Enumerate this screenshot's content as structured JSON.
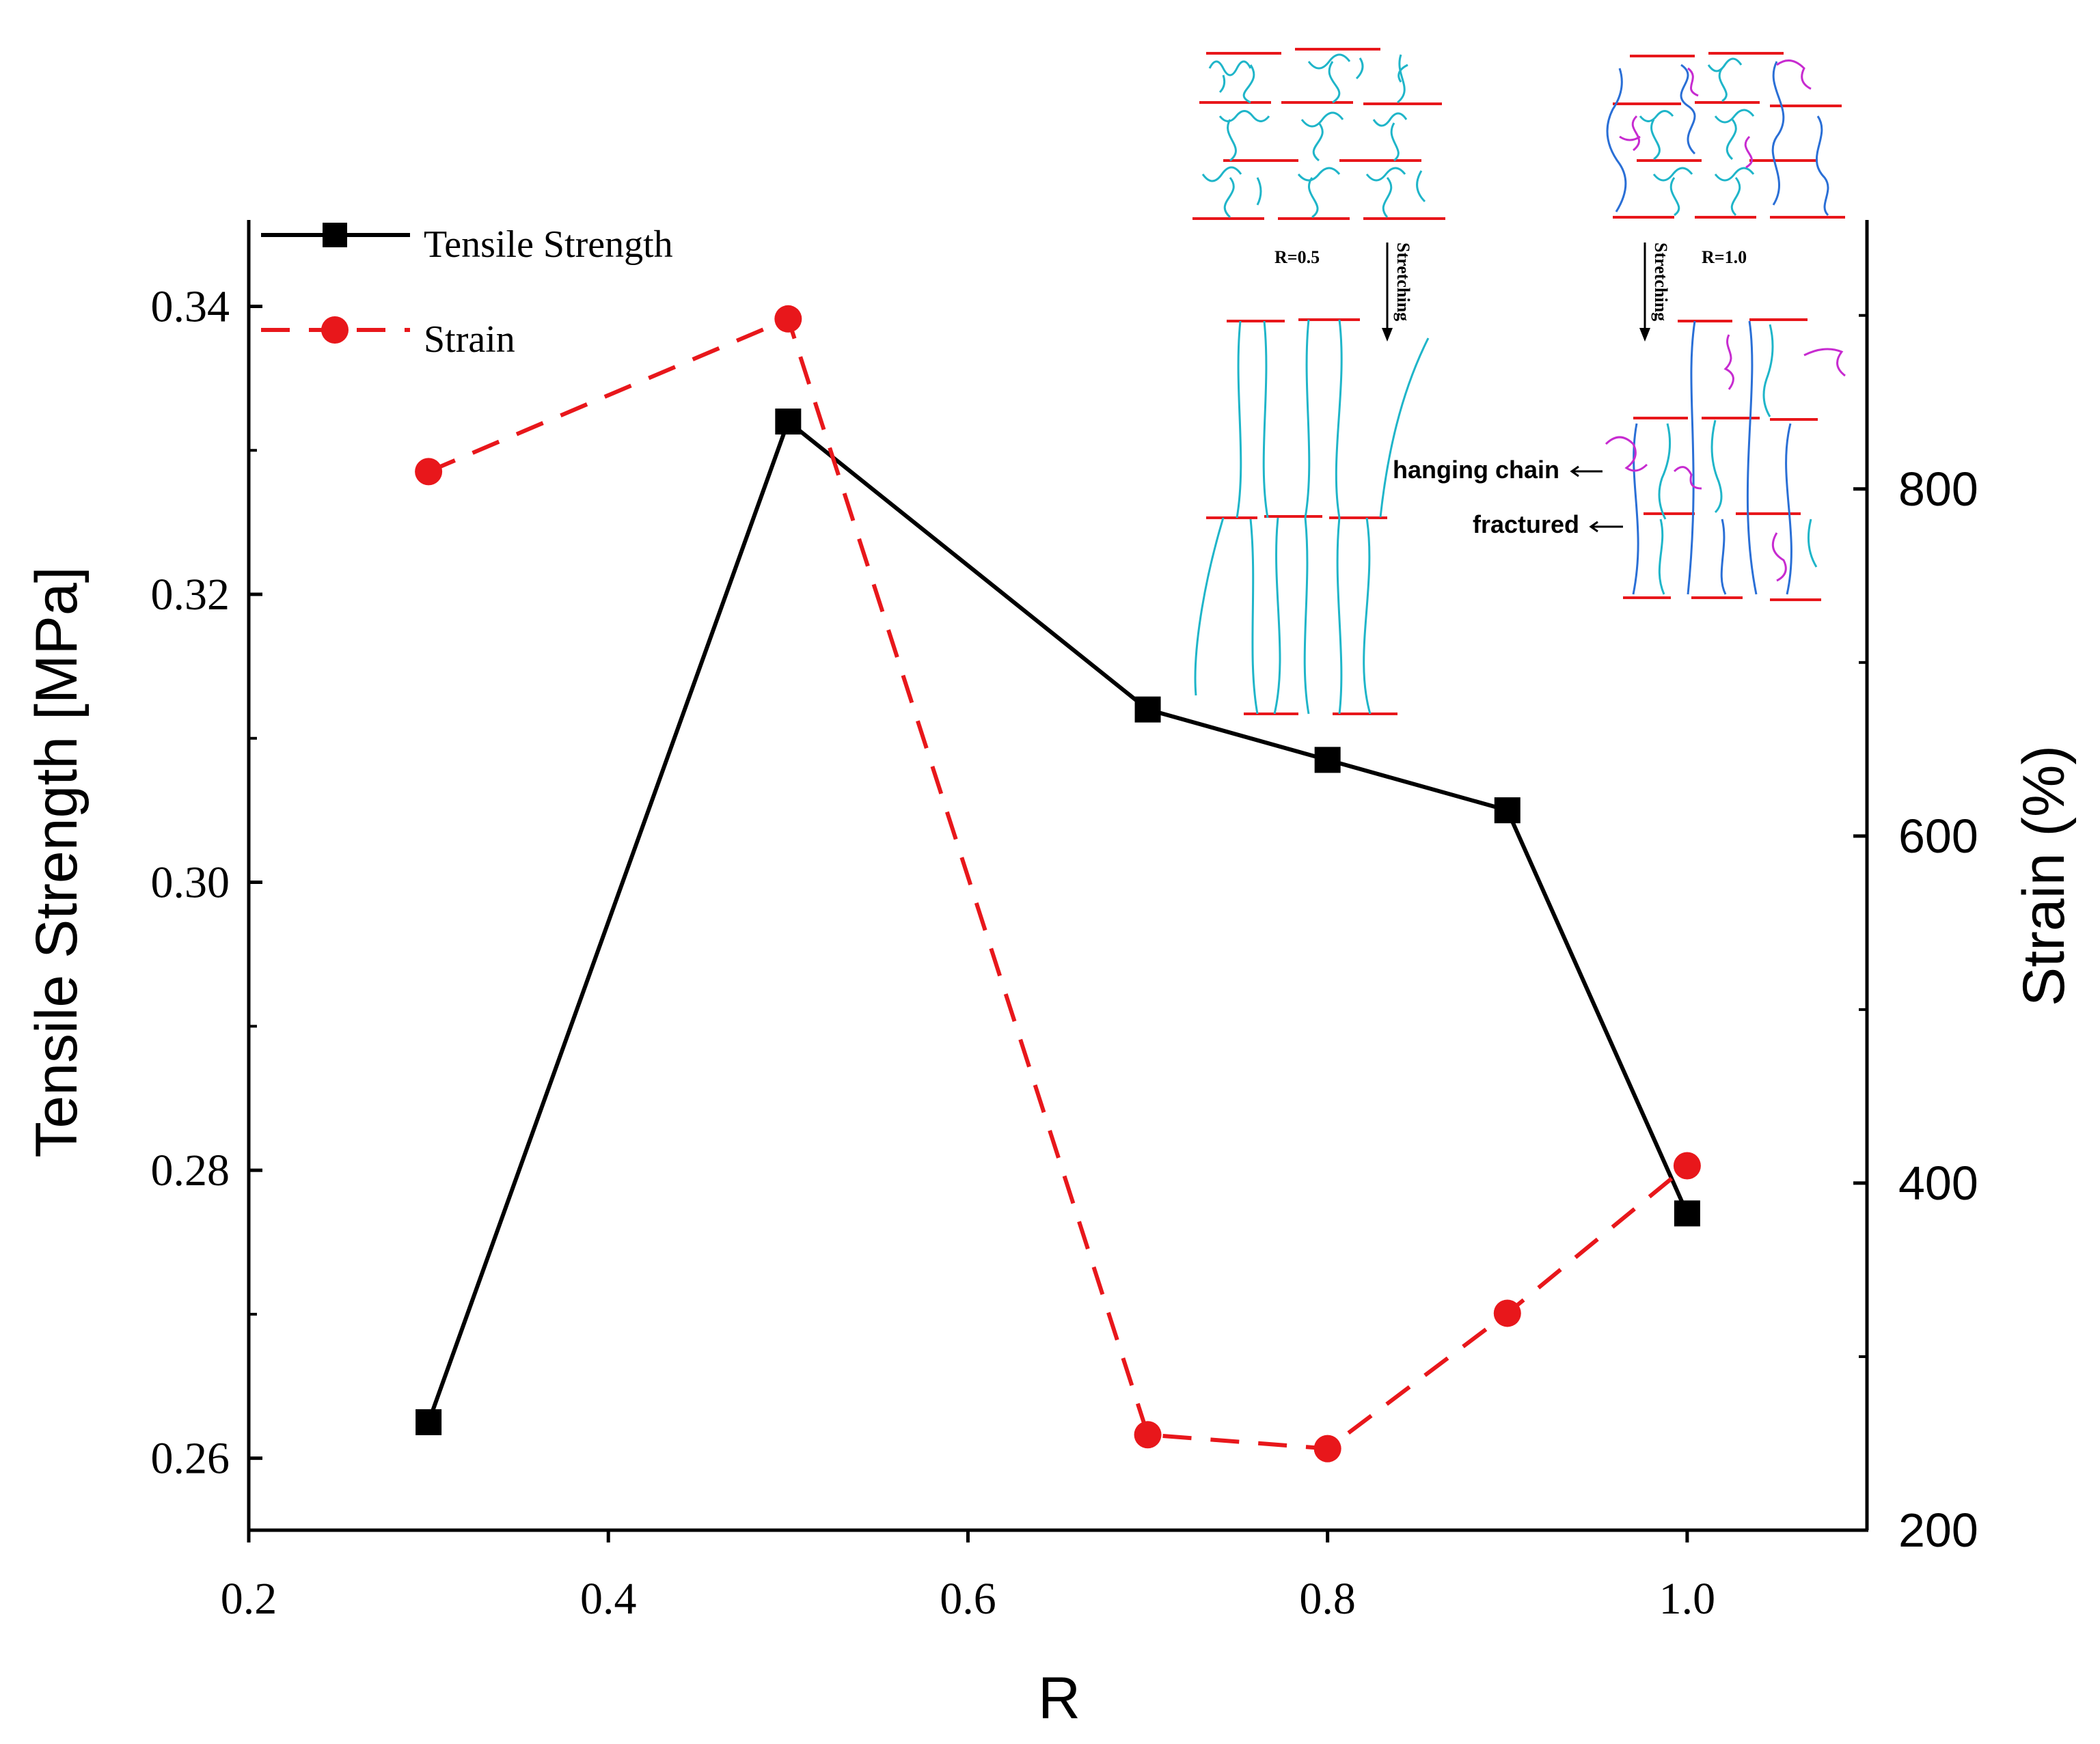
{
  "chart_data": {
    "type": "line",
    "xlabel": "R",
    "ylabel": "Tensile Strength [MPa]",
    "y2label": "Strain (%)",
    "xlim": [
      0.2,
      1.1
    ],
    "ylim": [
      0.255,
      0.346
    ],
    "y2lim": [
      200,
      955
    ],
    "x_ticks": [
      0.2,
      0.4,
      0.6,
      0.8,
      1.0
    ],
    "x_tick_labels": [
      "0.2",
      "0.4",
      "0.6",
      "0.8",
      "1.0"
    ],
    "y_ticks": [
      0.26,
      0.28,
      0.3,
      0.32,
      0.34
    ],
    "y_tick_labels": [
      "0.26",
      "0.28",
      "0.30",
      "0.32",
      "0.34"
    ],
    "y_minor_ticks": [
      0.27,
      0.29,
      0.31,
      0.33
    ],
    "y2_ticks": [
      200,
      400,
      600,
      800
    ],
    "y2_tick_labels": [
      "200",
      "400",
      "600",
      "800"
    ],
    "y2_minor_ticks": [
      300,
      500,
      700,
      900
    ],
    "x": [
      0.3,
      0.5,
      0.7,
      0.8,
      0.9,
      1.0
    ],
    "series": [
      {
        "name": "Tensile Strength",
        "axis": "left",
        "color": "#000000",
        "marker": "square",
        "line": "solid",
        "values": [
          0.2625,
          0.332,
          0.312,
          0.3085,
          0.305,
          0.277
        ]
      },
      {
        "name": "Strain",
        "axis": "right",
        "color": "#e8171b",
        "marker": "circle",
        "line": "dashed",
        "values": [
          810,
          898,
          255,
          247,
          325,
          410
        ]
      }
    ],
    "legend_position": "top-left"
  },
  "inset": {
    "left_label": "R=0.5",
    "right_label": "R=1.0",
    "arrow_label_left": "Stretching",
    "arrow_label_right": "Stretching",
    "annotation_hanging": "hanging chain",
    "annotation_fractured": "fractured",
    "colors": {
      "bond": "#e8171b",
      "chain_cyan": "#1fb5c9",
      "chain_blue": "#2a6fd6",
      "chain_magenta": "#c72bd0"
    }
  }
}
